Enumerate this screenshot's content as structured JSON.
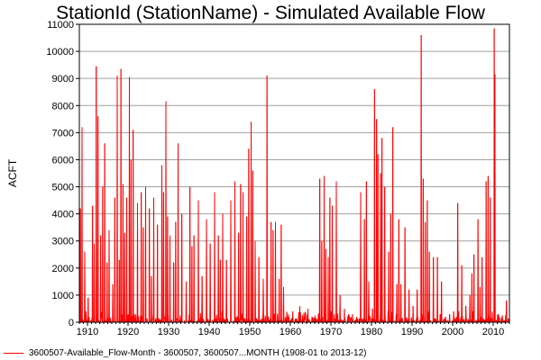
{
  "chart_data": {
    "type": "line",
    "title": "StationId (StationName) - Simulated Available Flow",
    "xlabel": "",
    "ylabel": "ACFT",
    "xlim": [
      1908.0,
      2014.0
    ],
    "ylim": [
      0,
      11000
    ],
    "x_ticks": [
      1910,
      1920,
      1930,
      1940,
      1950,
      1960,
      1970,
      1980,
      1990,
      2000,
      2010
    ],
    "y_ticks": [
      0,
      1000,
      2000,
      3000,
      4000,
      5000,
      6000,
      7000,
      8000,
      9000,
      10000,
      11000
    ],
    "grid": true,
    "legend_position": "bottom-left",
    "series": [
      {
        "name": "3600507-Available_Flow-Month - 3600507, 3600507...MONTH (1908-01 to 2013-12)",
        "color": "#ff0000",
        "frequency": "monthly",
        "x_start": "1908-01",
        "x_end": "2013-12",
        "peaks": [
          [
            "1908-04",
            4200
          ],
          [
            "1908-09",
            7200
          ],
          [
            "1909-05",
            2600
          ],
          [
            "1910-03",
            900
          ],
          [
            "1911-04",
            4300
          ],
          [
            "1911-09",
            2900
          ],
          [
            "1912-03",
            9450
          ],
          [
            "1912-08",
            7600
          ],
          [
            "1913-04",
            3200
          ],
          [
            "1913-10",
            5000
          ],
          [
            "1914-04",
            6600
          ],
          [
            "1914-11",
            2200
          ],
          [
            "1915-05",
            3400
          ],
          [
            "1916-04",
            1400
          ],
          [
            "1916-10",
            4600
          ],
          [
            "1917-05",
            9100
          ],
          [
            "1917-11",
            2300
          ],
          [
            "1918-04",
            9350
          ],
          [
            "1918-10",
            5100
          ],
          [
            "1919-03",
            3300
          ],
          [
            "1919-09",
            4600
          ],
          [
            "1920-05",
            9050
          ],
          [
            "1920-10",
            6000
          ],
          [
            "1921-04",
            7100
          ],
          [
            "1922-05",
            4400
          ],
          [
            "1923-04",
            4800
          ],
          [
            "1923-10",
            3500
          ],
          [
            "1924-05",
            5000
          ],
          [
            "1925-04",
            4200
          ],
          [
            "1925-10",
            1700
          ],
          [
            "1926-05",
            4600
          ],
          [
            "1927-04",
            3600
          ],
          [
            "1928-05",
            5800
          ],
          [
            "1928-10",
            4800
          ],
          [
            "1929-05",
            8150
          ],
          [
            "1929-10",
            3900
          ],
          [
            "1930-05",
            3200
          ],
          [
            "1931-04",
            2200
          ],
          [
            "1931-10",
            3700
          ],
          [
            "1932-05",
            6600
          ],
          [
            "1933-04",
            4000
          ],
          [
            "1934-05",
            1500
          ],
          [
            "1935-04",
            5000
          ],
          [
            "1935-10",
            2800
          ],
          [
            "1936-04",
            3200
          ],
          [
            "1937-05",
            4500
          ],
          [
            "1938-04",
            1700
          ],
          [
            "1939-05",
            3800
          ],
          [
            "1940-04",
            2900
          ],
          [
            "1941-05",
            4800
          ],
          [
            "1942-04",
            3200
          ],
          [
            "1942-10",
            2300
          ],
          [
            "1943-05",
            4000
          ],
          [
            "1944-04",
            2300
          ],
          [
            "1945-05",
            4500
          ],
          [
            "1946-05",
            5200
          ],
          [
            "1947-04",
            3300
          ],
          [
            "1947-10",
            5100
          ],
          [
            "1948-05",
            4800
          ],
          [
            "1949-04",
            3900
          ],
          [
            "1949-10",
            6400
          ],
          [
            "1950-05",
            7400
          ],
          [
            "1950-10",
            5600
          ],
          [
            "1951-05",
            3000
          ],
          [
            "1952-04",
            2400
          ],
          [
            "1953-05",
            1600
          ],
          [
            "1954-04",
            9100
          ],
          [
            "1955-04",
            3700
          ],
          [
            "1955-10",
            3400
          ],
          [
            "1956-05",
            3700
          ],
          [
            "1957-04",
            1600
          ],
          [
            "1957-10",
            3600
          ],
          [
            "1958-05",
            1300
          ],
          [
            "1959-05",
            200
          ],
          [
            "1960-05",
            150
          ],
          [
            "1961-04",
            120
          ],
          [
            "1962-05",
            600
          ],
          [
            "1963-05",
            350
          ],
          [
            "1964-05",
            500
          ],
          [
            "1965-05",
            200
          ],
          [
            "1966-05",
            150
          ],
          [
            "1967-04",
            5300
          ],
          [
            "1967-10",
            3000
          ],
          [
            "1968-05",
            5400
          ],
          [
            "1968-10",
            2700
          ],
          [
            "1969-05",
            2400
          ],
          [
            "1969-10",
            4600
          ],
          [
            "1970-05",
            4300
          ],
          [
            "1971-05",
            5200
          ],
          [
            "1972-04",
            1000
          ],
          [
            "1973-05",
            500
          ],
          [
            "1974-05",
            300
          ],
          [
            "1975-05",
            300
          ],
          [
            "1976-05",
            200
          ],
          [
            "1977-05",
            4800
          ],
          [
            "1978-04",
            3800
          ],
          [
            "1978-10",
            5200
          ],
          [
            "1979-05",
            1500
          ],
          [
            "1980-04",
            500
          ],
          [
            "1980-10",
            8600
          ],
          [
            "1981-04",
            7500
          ],
          [
            "1981-08",
            6200
          ],
          [
            "1982-04",
            5500
          ],
          [
            "1982-08",
            6800
          ],
          [
            "1983-04",
            5000
          ],
          [
            "1984-04",
            2600
          ],
          [
            "1984-10",
            4000
          ],
          [
            "1985-04",
            7200
          ],
          [
            "1986-04",
            1400
          ],
          [
            "1986-10",
            3800
          ],
          [
            "1987-04",
            1400
          ],
          [
            "1988-04",
            3500
          ],
          [
            "1989-04",
            1200
          ],
          [
            "1990-04",
            600
          ],
          [
            "1991-04",
            1200
          ],
          [
            "1992-04",
            10600
          ],
          [
            "1992-10",
            5300
          ],
          [
            "1993-04",
            3700
          ],
          [
            "1993-10",
            4500
          ],
          [
            "1994-04",
            2600
          ],
          [
            "1995-04",
            2400
          ],
          [
            "1996-04",
            2400
          ],
          [
            "1997-04",
            1500
          ],
          [
            "1998-04",
            200
          ],
          [
            "1999-04",
            300
          ],
          [
            "2000-04",
            400
          ],
          [
            "2001-04",
            4400
          ],
          [
            "2002-04",
            2100
          ],
          [
            "2003-04",
            600
          ],
          [
            "2004-04",
            1000
          ],
          [
            "2004-10",
            1800
          ],
          [
            "2005-04",
            2500
          ],
          [
            "2006-04",
            3800
          ],
          [
            "2006-10",
            1300
          ],
          [
            "2007-04",
            2400
          ],
          [
            "2008-04",
            5200
          ],
          [
            "2008-10",
            5400
          ],
          [
            "2009-04",
            4600
          ],
          [
            "2010-04",
            10850
          ],
          [
            "2010-06",
            9150
          ],
          [
            "2011-04",
            300
          ],
          [
            "2012-04",
            250
          ],
          [
            "2013-04",
            800
          ]
        ]
      }
    ]
  }
}
